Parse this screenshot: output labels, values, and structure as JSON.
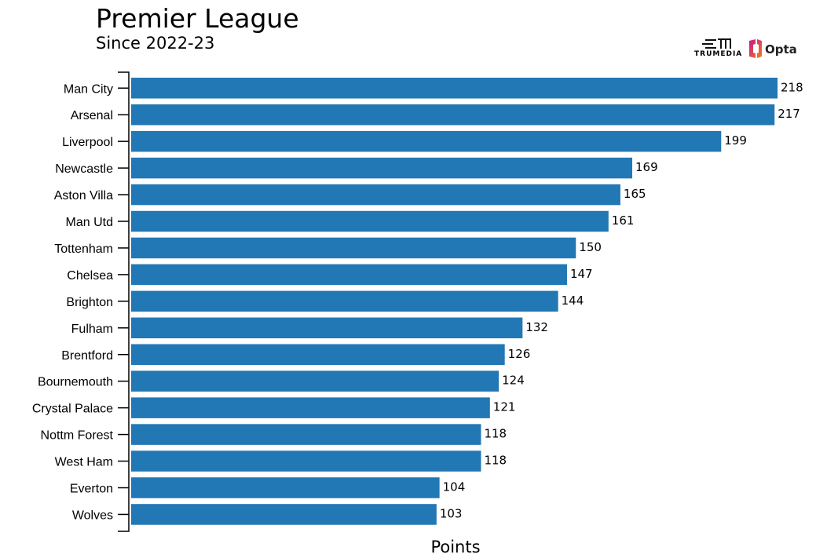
{
  "chart_data": {
    "type": "bar",
    "orientation": "horizontal",
    "title": "Premier League",
    "subtitle": "Since 2022-23",
    "xlabel": "Points",
    "ylabel": "",
    "categories": [
      "Man City",
      "Arsenal",
      "Liverpool",
      "Newcastle",
      "Aston Villa",
      "Man Utd",
      "Tottenham",
      "Chelsea",
      "Brighton",
      "Fulham",
      "Brentford",
      "Bournemouth",
      "Crystal Palace",
      "Nottm Forest",
      "West Ham",
      "Everton",
      "Wolves"
    ],
    "values": [
      218,
      217,
      199,
      169,
      165,
      161,
      150,
      147,
      144,
      132,
      126,
      124,
      121,
      118,
      118,
      104,
      103
    ],
    "xlim": [
      0,
      218
    ],
    "grid": false,
    "data_labels": true,
    "bar_color": "#2277b5"
  },
  "logos": {
    "trumedia": "TRUMEDIA",
    "opta": "Opta"
  }
}
